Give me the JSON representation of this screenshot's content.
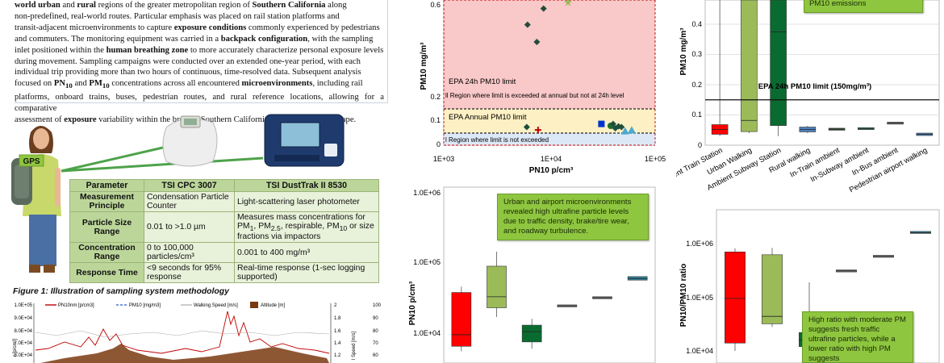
{
  "paragraph": {
    "l1_b1": "world urban",
    "l1_t1": " and ",
    "l1_b2": "rural",
    "l1_t2": " regions of the greater metropolitan region of ",
    "l1_b3": "Southern California",
    "l1_t3": " along",
    "l2": "non-predefined, real-world routes. Particular emphasis was placed on rail station platforms and",
    "l3_t1": "transit-adjacent microenvironments to capture ",
    "l3_b1": "exposure conditions",
    "l3_t2": " commonly experienced by pedestrians",
    "l4_t1": "and commuters. The monitoring equipment was carried in a ",
    "l4_b1": "backpack configuration",
    "l4_t2": ", with the sampling",
    "l5_t1": "inlet positioned within the ",
    "l5_b1": "human breathing zone",
    "l5_t2": " to more accurately characterize personal exposure levels",
    "l6": "during movement. Sampling campaigns were conducted over an extended one-year period, with each",
    "l7": "individual trip providing more than two hours of continuous, time-resolved data. Subsequent analysis",
    "l8_t1": "focused on ",
    "l8_b1": "PN",
    "l8_sub1": "10",
    "l8_t2": " and ",
    "l8_b2": "PM",
    "l8_sub2": "10",
    "l8_t3": " concentrations across all encountered ",
    "l8_b3": "microenvironments",
    "l8_t4": ", including rail",
    "l9": "platforms, onboard trains, buses, pedestrian routes, and rural reference locations, allowing for a comparative",
    "l10_t1": "assessment of ",
    "l10_b1": "exposure",
    "l10_t2": " variability within the broader Southern California transportation landscape."
  },
  "figure1": {
    "gps_label": "GPS",
    "caption": "Figure 1: Illustration of sampling system methodology",
    "table": {
      "headers": [
        "Parameter",
        "TSI CPC 3007",
        "TSI DustTrak II 8530"
      ],
      "rows": [
        {
          "param": "Measurement Principle",
          "cpc": "Condensation Particle Counter",
          "dt": "Light-scattering laser photometer"
        },
        {
          "param": "Particle Size Range",
          "cpc": "0.01 to >1.0 µm",
          "dt_pre": "Measures mass concentrations for PM",
          "dt_sub1": "1",
          "dt_mid": ", PM",
          "dt_sub2": "2.5",
          "dt_mid2": ", respirable, PM",
          "dt_sub3": "10",
          "dt_post": " or size fractions via impactors"
        },
        {
          "param": "Concentration Range",
          "cpc": "0 to 100,000 particles/cm³",
          "dt": "0.001 to 400 mg/m³"
        },
        {
          "param": "Response Time",
          "cpc": "<9 seconds for 95% response",
          "dt": "Real-time response (1-sec logging supported)"
        }
      ]
    }
  },
  "timeseries": {
    "legend": [
      "PN10nm [p/cm3]",
      "PM10 [mg/m3]",
      "Walking Speed [m/s]",
      "Altitude [m]"
    ],
    "y_ticks": [
      "1.0E+05",
      "9.0E+04",
      "8.0E+04",
      "7.0E+04",
      "6.0E+04"
    ],
    "y_label_partial": "r [p/cm³]",
    "right_ticks_1": [
      "2",
      "1.8",
      "1.6",
      "1.4",
      "1.2"
    ],
    "right_ticks_2": [
      "100",
      "90",
      "80",
      "70",
      "60"
    ],
    "right_label_partial": "l Speed [m/s]"
  },
  "chart_scatter": {
    "ylabel": "PM10 mg/m³",
    "xlabel": "PN10 p/cm³",
    "x_ticks": [
      "1E+03",
      "1E+04",
      "1E+05"
    ],
    "y_ticks": [
      "0",
      "0.1",
      "0.2",
      "0.6"
    ],
    "annotations": {
      "epa24": "EPA 24h PM10 limit",
      "region_annual": "ll Region where limit is exceeded at annual but not at 24h level",
      "epa_annual": "EPA Annual PM10 limit",
      "region_not": "l Region where limit is not exceeded"
    },
    "chart_data": {
      "type": "scatter",
      "xscale": "log",
      "xlim": [
        1000,
        100000
      ],
      "ylim": [
        0,
        0.65
      ],
      "points": [
        {
          "x": 8800,
          "y": 0.61,
          "marker": "diamond",
          "color": "#1f4e3d"
        },
        {
          "x": 15000,
          "y": 0.64,
          "marker": "star",
          "color": "#9bbb59"
        },
        {
          "x": 6200,
          "y": 0.535,
          "marker": "diamond",
          "color": "#1f4e3d"
        },
        {
          "x": 7600,
          "y": 0.455,
          "marker": "diamond",
          "color": "#1f4e3d"
        },
        {
          "x": 6100,
          "y": 0.075,
          "marker": "diamond",
          "color": "#1f4e3d"
        },
        {
          "x": 7800,
          "y": 0.063,
          "marker": "plus",
          "color": "#c00000"
        },
        {
          "x": 31000,
          "y": 0.088,
          "marker": "square",
          "color": "#0033cc"
        },
        {
          "x": 38000,
          "y": 0.08,
          "marker": "circle",
          "color": "#1f6e2b"
        },
        {
          "x": 40000,
          "y": 0.088,
          "marker": "diamond",
          "color": "#1f4e3d"
        },
        {
          "x": 42000,
          "y": 0.07,
          "marker": "diamond",
          "color": "#1f4e3d"
        },
        {
          "x": 45000,
          "y": 0.078,
          "marker": "diamond",
          "color": "#1f4e3d"
        },
        {
          "x": 48000,
          "y": 0.075,
          "marker": "diamond",
          "color": "#1f4e3d"
        },
        {
          "x": 52000,
          "y": 0.058,
          "marker": "triangle",
          "color": "#4aaad1"
        },
        {
          "x": 60000,
          "y": 0.062,
          "marker": "triangle",
          "color": "#4aaad1"
        }
      ],
      "hlines": [
        {
          "y": 0.15
        },
        {
          "y": 0.05
        }
      ]
    }
  },
  "chart_pm_box": {
    "ylabel": "PM10 mg/m³",
    "y_ticks": [
      "0",
      "0.1",
      "0.2",
      "0.3",
      "0.4"
    ],
    "epa_label": "EPA 24h PM10 limit (150mg/m³)",
    "callout": "PM10 emissions",
    "categories": [
      "Ambient Train Station",
      "Urban Walking",
      "Ambient Subway Station",
      "Rural walking",
      "In-Train ambient",
      "In-Subway ambient",
      "In-Bus ambient",
      "Pedestrian airport walking"
    ],
    "chart_data": {
      "type": "box",
      "ylim": [
        0,
        0.48
      ],
      "hline": 0.15,
      "boxes": [
        {
          "q1": 0.036,
          "med": 0.052,
          "q3": 0.068,
          "min": 0.03,
          "max": 0.48,
          "color": "#ff0000"
        },
        {
          "q1": 0.045,
          "med": 0.082,
          "q3": 0.48,
          "min": 0.04,
          "max": 0.48,
          "color": "#9bbb59"
        },
        {
          "q1": 0.065,
          "med": 0.375,
          "q3": 0.48,
          "min": 0.03,
          "max": 0.48,
          "color": "#0a6b30"
        },
        {
          "q1": 0.044,
          "med": 0.052,
          "q3": 0.06,
          "min": 0.04,
          "max": 0.064,
          "color": "#4f81bd"
        },
        {
          "q1": 0.053,
          "med": 0.053,
          "q3": 0.053,
          "min": 0.053,
          "max": 0.053,
          "color": "#3c5a3c"
        },
        {
          "q1": 0.055,
          "med": 0.055,
          "q3": 0.055,
          "min": 0.055,
          "max": 0.055,
          "color": "#3c8a6a"
        },
        {
          "q1": 0.073,
          "med": 0.073,
          "q3": 0.073,
          "min": 0.073,
          "max": 0.073,
          "color": "#7f7f7f"
        },
        {
          "q1": 0.032,
          "med": 0.036,
          "q3": 0.04,
          "min": 0.032,
          "max": 0.04,
          "color": "#4f81bd"
        }
      ]
    }
  },
  "chart_pn_box": {
    "ylabel": "PN10 p/cm³",
    "y_ticks": [
      "1.0E+06",
      "1.0E+05",
      "1.0E+04"
    ],
    "callout": "Urban and airport microenvironments revealed high ultrafine particle levels due to traffic density, brake/tire wear, and roadway turbulence.",
    "chart_data": {
      "type": "box",
      "yscale": "log",
      "ylim": [
        4000,
        1000000
      ],
      "boxes": [
        {
          "q1": 6500,
          "med": 9500,
          "q3": 38000,
          "min": 5500,
          "max": 46000,
          "color": "#ff0000"
        },
        {
          "q1": 23000,
          "med": 33000,
          "q3": 90000,
          "min": 17000,
          "max": 145000,
          "color": "#9bbb59"
        },
        {
          "q1": 7500,
          "med": 10500,
          "q3": 13000,
          "min": 6000,
          "max": 16000,
          "color": "#0a6b30"
        },
        {
          "q1": 24500,
          "med": 24500,
          "q3": 24500,
          "min": 24500,
          "max": 24500,
          "color": "#7f7f7f"
        },
        {
          "q1": 32000,
          "med": 32000,
          "q3": 32000,
          "min": 32000,
          "max": 32000,
          "color": "#7f7f7f"
        },
        {
          "q1": 57000,
          "med": 60000,
          "q3": 64000,
          "min": 57000,
          "max": 64000,
          "color": "#31859c"
        }
      ]
    }
  },
  "chart_ratio_box": {
    "ylabel": "PN10/PM10 ratio",
    "y_ticks": [
      "1.0E+06",
      "1.0E+05",
      "1.0E+04"
    ],
    "callout": "High ratio with moderate PM suggests fresh traffic ultrafine particles, while a lower ratio with high PM suggests resuspension/abrasion (e.g.,",
    "chart_data": {
      "type": "box",
      "yscale": "log",
      "ylim": [
        7000,
        2500000
      ],
      "boxes": [
        {
          "q1": 14000,
          "med": 95000,
          "q3": 700000,
          "min": 10000,
          "max": 820000,
          "color": "#ff0000"
        },
        {
          "q1": 32000,
          "med": 44000,
          "q3": 620000,
          "min": 28000,
          "max": 830000,
          "color": "#9bbb59"
        },
        {
          "q1": 12000,
          "med": 16000,
          "q3": 22000,
          "min": 10000,
          "max": 190000,
          "color": "#0a6b30"
        },
        {
          "q1": 310000,
          "med": 310000,
          "q3": 310000,
          "min": 310000,
          "max": 310000,
          "color": "#7f7f7f"
        },
        {
          "q1": 580000,
          "med": 580000,
          "q3": 580000,
          "min": 580000,
          "max": 580000,
          "color": "#7f7f7f"
        },
        {
          "q1": 1580000,
          "med": 1600000,
          "q3": 1620000,
          "min": 1580000,
          "max": 1620000,
          "color": "#31859c"
        }
      ]
    }
  }
}
